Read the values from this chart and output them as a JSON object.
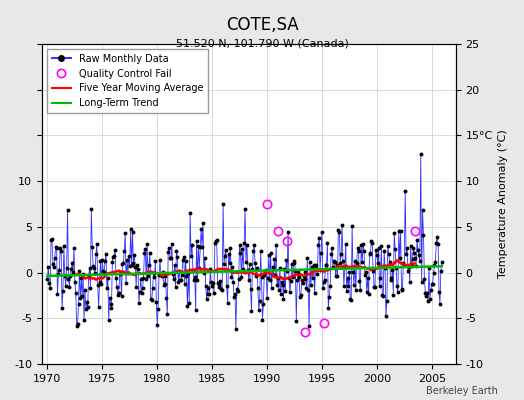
{
  "title": "COTE,SA",
  "subtitle": "51.520 N, 101.790 W (Canada)",
  "ylabel": "Temperature Anomaly (°C)",
  "xlim": [
    1969.5,
    2007.2
  ],
  "ylim": [
    -10,
    25
  ],
  "yticks_all": [
    -10,
    -5,
    0,
    5,
    10,
    15,
    20,
    25
  ],
  "ytick_label_15": "15°C",
  "xticks": [
    1970,
    1975,
    1980,
    1985,
    1990,
    1995,
    2000,
    2005
  ],
  "background_color": "#e8e8e8",
  "plot_bg_color": "#ffffff",
  "raw_line_color": "#3333ff",
  "raw_dot_color": "#000000",
  "moving_avg_color": "#ff0000",
  "trend_color": "#00bb00",
  "qc_fail_color": "#ff00ff",
  "watermark": "Berkeley Earth",
  "seed": 12345,
  "n_months": 432,
  "start_year": 1970.0,
  "noise_std": 2.2
}
